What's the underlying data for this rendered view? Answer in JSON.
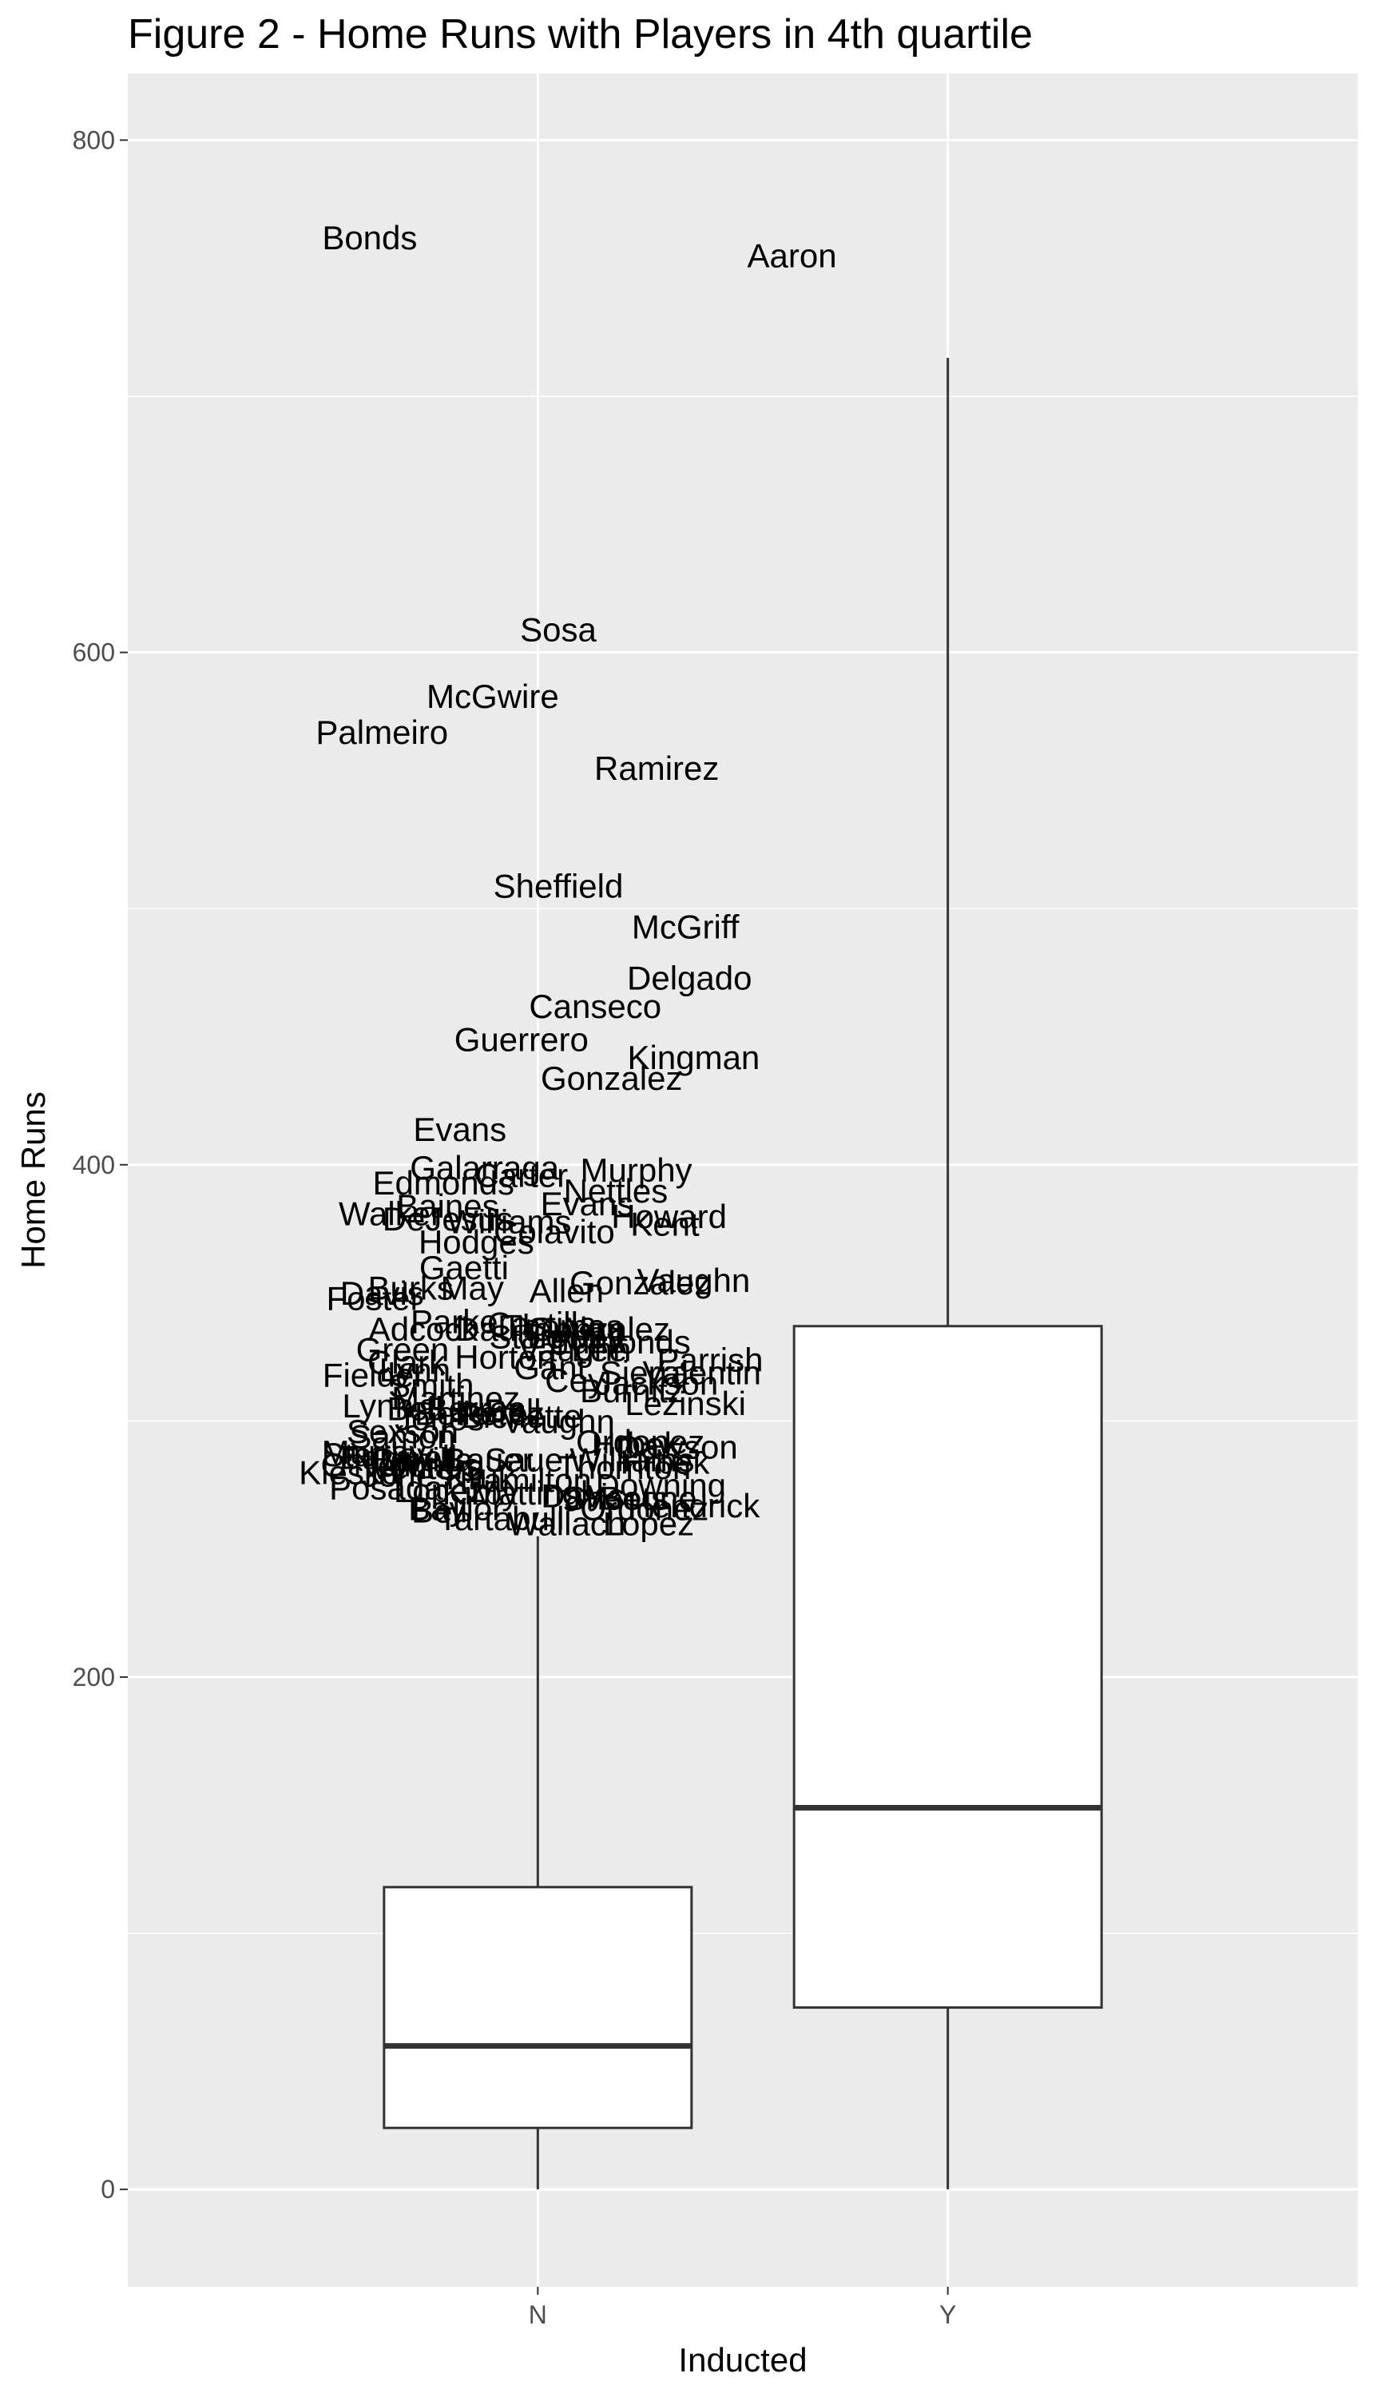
{
  "chart_data": {
    "type": "boxplot",
    "title": "Figure 2 - Home Runs with Players in 4th quartile",
    "xlabel": "Inducted",
    "ylabel": "Home Runs",
    "categories": [
      "N",
      "Y"
    ],
    "ylim": [
      -38,
      826
    ],
    "yticks": [
      0,
      200,
      400,
      600,
      800
    ],
    "grid": true,
    "legend": "none",
    "panel_color": "#ebebeb",
    "box_color": "#333333",
    "boxes": [
      {
        "category": "N",
        "min": 0,
        "q1": 24,
        "median": 56,
        "q3": 118,
        "max": 255
      },
      {
        "category": "Y",
        "min": 0,
        "q1": 71,
        "median": 149,
        "q3": 337,
        "max": 715
      }
    ],
    "labels": [
      {
        "text": "Bonds",
        "category": "N",
        "x": -0.41,
        "y": 762
      },
      {
        "text": "Aaron",
        "category": "Y",
        "x": -0.38,
        "y": 755
      },
      {
        "text": "Sosa",
        "category": "N",
        "x": 0.05,
        "y": 609
      },
      {
        "text": "McGwire",
        "category": "N",
        "x": -0.11,
        "y": 583
      },
      {
        "text": "Palmeiro",
        "category": "N",
        "x": -0.38,
        "y": 569
      },
      {
        "text": "Ramirez",
        "category": "N",
        "x": 0.29,
        "y": 555
      },
      {
        "text": "Sheffield",
        "category": "N",
        "x": 0.05,
        "y": 509
      },
      {
        "text": "McGriff",
        "category": "N",
        "x": 0.36,
        "y": 493
      },
      {
        "text": "Delgado",
        "category": "N",
        "x": 0.37,
        "y": 473
      },
      {
        "text": "Canseco",
        "category": "N",
        "x": 0.14,
        "y": 462
      },
      {
        "text": "Guerrero",
        "category": "N",
        "x": -0.04,
        "y": 449
      },
      {
        "text": "Kingman",
        "category": "N",
        "x": 0.38,
        "y": 442
      },
      {
        "text": "Gonzalez",
        "category": "N",
        "x": 0.18,
        "y": 434
      },
      {
        "text": "Evans",
        "category": "N",
        "x": -0.19,
        "y": 414
      },
      {
        "text": "Galarraga",
        "category": "N",
        "x": -0.13,
        "y": 399
      },
      {
        "text": "Murphy",
        "category": "N",
        "x": 0.24,
        "y": 398
      },
      {
        "text": "Carter",
        "category": "N",
        "x": -0.04,
        "y": 396
      },
      {
        "text": "Edmonds",
        "category": "N",
        "x": -0.23,
        "y": 393
      },
      {
        "text": "Nettles",
        "category": "N",
        "x": 0.19,
        "y": 390
      },
      {
        "text": "Evans",
        "category": "N",
        "x": 0.12,
        "y": 385
      },
      {
        "text": "Baines",
        "category": "N",
        "x": -0.22,
        "y": 384
      },
      {
        "text": "Walker",
        "category": "N",
        "x": -0.36,
        "y": 381
      },
      {
        "text": "Howard",
        "category": "N",
        "x": 0.32,
        "y": 380
      },
      {
        "text": "DeJesus",
        "category": "N",
        "x": -0.22,
        "y": 379
      },
      {
        "text": "Williams",
        "category": "N",
        "x": -0.07,
        "y": 378
      },
      {
        "text": "Kent",
        "category": "N",
        "x": 0.31,
        "y": 377
      },
      {
        "text": "Colavito",
        "category": "N",
        "x": 0.04,
        "y": 374
      },
      {
        "text": "Hodges",
        "category": "N",
        "x": -0.15,
        "y": 370
      },
      {
        "text": "Gaetti",
        "category": "N",
        "x": -0.18,
        "y": 360
      },
      {
        "text": "Gonzalez",
        "category": "N",
        "x": 0.25,
        "y": 354
      },
      {
        "text": "Vaughn",
        "category": "N",
        "x": 0.38,
        "y": 355
      },
      {
        "text": "Burks",
        "category": "N",
        "x": -0.31,
        "y": 352
      },
      {
        "text": "May",
        "category": "N",
        "x": -0.16,
        "y": 352
      },
      {
        "text": "Allen",
        "category": "N",
        "x": 0.07,
        "y": 351
      },
      {
        "text": "Davis",
        "category": "N",
        "x": -0.38,
        "y": 350
      },
      {
        "text": "Foster",
        "category": "N",
        "x": -0.4,
        "y": 348
      },
      {
        "text": "Parker",
        "category": "N",
        "x": -0.19,
        "y": 339
      },
      {
        "text": "Castilla",
        "category": "N",
        "x": 0.01,
        "y": 338
      },
      {
        "text": "Thomas",
        "category": "N",
        "x": 0.06,
        "y": 337
      },
      {
        "text": "Alou",
        "category": "N",
        "x": 0.13,
        "y": 336
      },
      {
        "text": "Gonzalez",
        "category": "N",
        "x": 0.15,
        "y": 336
      },
      {
        "text": "Adcock",
        "category": "N",
        "x": -0.28,
        "y": 336
      },
      {
        "text": "Daulton",
        "category": "N",
        "x": -0.06,
        "y": 336
      },
      {
        "text": "Stargell",
        "category": "N",
        "x": 0.02,
        "y": 333
      },
      {
        "text": "Lowell",
        "category": "N",
        "x": 0.09,
        "y": 333
      },
      {
        "text": "Edmonds",
        "category": "N",
        "x": 0.2,
        "y": 331
      },
      {
        "text": "Green",
        "category": "N",
        "x": -0.33,
        "y": 328
      },
      {
        "text": "Vaughn",
        "category": "N",
        "x": 0.09,
        "y": 328
      },
      {
        "text": "Lee",
        "category": "N",
        "x": 0.15,
        "y": 328
      },
      {
        "text": "Horton",
        "category": "N",
        "x": -0.08,
        "y": 325
      },
      {
        "text": "Parrish",
        "category": "N",
        "x": 0.42,
        "y": 324
      },
      {
        "text": "Clark",
        "category": "N",
        "x": -0.32,
        "y": 323
      },
      {
        "text": "Gant",
        "category": "N",
        "x": 0.03,
        "y": 321
      },
      {
        "text": "Lynn",
        "category": "N",
        "x": -0.3,
        "y": 320
      },
      {
        "text": "Sierra",
        "category": "N",
        "x": 0.26,
        "y": 319
      },
      {
        "text": "Valentin",
        "category": "N",
        "x": 0.4,
        "y": 319
      },
      {
        "text": "Fielder",
        "category": "N",
        "x": -0.4,
        "y": 318
      },
      {
        "text": "Cey",
        "category": "N",
        "x": 0.09,
        "y": 316
      },
      {
        "text": "Jackson",
        "category": "N",
        "x": 0.29,
        "y": 315
      },
      {
        "text": "Smith",
        "category": "N",
        "x": -0.26,
        "y": 314
      },
      {
        "text": "Burnitz",
        "category": "N",
        "x": 0.23,
        "y": 312
      },
      {
        "text": "Martinez",
        "category": "N",
        "x": -0.2,
        "y": 309
      },
      {
        "text": "Lezinski",
        "category": "N",
        "x": 0.36,
        "y": 307
      },
      {
        "text": "Lynn",
        "category": "N",
        "x": -0.39,
        "y": 306
      },
      {
        "text": "Bell",
        "category": "N",
        "x": -0.3,
        "y": 305
      },
      {
        "text": "Berroa",
        "category": "N",
        "x": -0.15,
        "y": 305
      },
      {
        "text": "Bell",
        "category": "N",
        "x": -0.06,
        "y": 304
      },
      {
        "text": "Belle",
        "category": "N",
        "x": -0.21,
        "y": 303
      },
      {
        "text": "Perez",
        "category": "N",
        "x": -0.09,
        "y": 303
      },
      {
        "text": "Bichette",
        "category": "N",
        "x": -0.04,
        "y": 302
      },
      {
        "text": "Jones",
        "category": "N",
        "x": -0.24,
        "y": 301
      },
      {
        "text": "Vaughn",
        "category": "N",
        "x": 0.05,
        "y": 300
      },
      {
        "text": "Sexson",
        "category": "N",
        "x": -0.33,
        "y": 296
      },
      {
        "text": "Samon",
        "category": "N",
        "x": -0.33,
        "y": 294
      },
      {
        "text": "Ordonez",
        "category": "N",
        "x": 0.25,
        "y": 292
      },
      {
        "text": "Hrbek",
        "category": "N",
        "x": 0.24,
        "y": 291
      },
      {
        "text": "Dawson",
        "category": "N",
        "x": 0.34,
        "y": 290
      },
      {
        "text": "Murray",
        "category": "N",
        "x": -0.4,
        "y": 288
      },
      {
        "text": "Stanley",
        "category": "N",
        "x": -0.39,
        "y": 287
      },
      {
        "text": "Bagwell",
        "category": "N",
        "x": -0.34,
        "y": 286
      },
      {
        "text": "Bonilla",
        "category": "N",
        "x": -0.28,
        "y": 285
      },
      {
        "text": "Bauer",
        "category": "N",
        "x": -0.12,
        "y": 285
      },
      {
        "text": "Sauer",
        "category": "N",
        "x": -0.02,
        "y": 285
      },
      {
        "text": "Williams",
        "category": "N",
        "x": 0.23,
        "y": 285
      },
      {
        "text": "Hrbek",
        "category": "N",
        "x": 0.31,
        "y": 284
      },
      {
        "text": "O'Neill",
        "category": "N",
        "x": -0.41,
        "y": 283
      },
      {
        "text": "Jones",
        "category": "N",
        "x": -0.25,
        "y": 283
      },
      {
        "text": "Ventura",
        "category": "N",
        "x": -0.27,
        "y": 282
      },
      {
        "text": "Thornton",
        "category": "N",
        "x": 0.21,
        "y": 282
      },
      {
        "text": "Klesko",
        "category": "N",
        "x": -0.46,
        "y": 280
      },
      {
        "text": "Jones",
        "category": "N",
        "x": -0.32,
        "y": 279
      },
      {
        "text": "Kruk",
        "category": "N",
        "x": -0.14,
        "y": 278
      },
      {
        "text": "Hamilton",
        "category": "N",
        "x": -0.03,
        "y": 277
      },
      {
        "text": "Downing",
        "category": "N",
        "x": 0.3,
        "y": 275
      },
      {
        "text": "Posada",
        "category": "N",
        "x": -0.37,
        "y": 274
      },
      {
        "text": "Lopez",
        "category": "N",
        "x": -0.24,
        "y": 273
      },
      {
        "text": "Kirby",
        "category": "N",
        "x": -0.14,
        "y": 272
      },
      {
        "text": "Mattingly",
        "category": "N",
        "x": 0.0,
        "y": 272
      },
      {
        "text": "Davis",
        "category": "N",
        "x": 0.11,
        "y": 271
      },
      {
        "text": "Sheets",
        "category": "N",
        "x": 0.19,
        "y": 270
      },
      {
        "text": "Boone",
        "category": "N",
        "x": 0.27,
        "y": 270
      },
      {
        "text": "Hendrick",
        "category": "N",
        "x": 0.38,
        "y": 267
      },
      {
        "text": "Baylor",
        "category": "N",
        "x": -0.2,
        "y": 266
      },
      {
        "text": "Ordonez",
        "category": "N",
        "x": 0.26,
        "y": 266
      },
      {
        "text": "Wallach",
        "category": "N",
        "x": 0.07,
        "y": 260
      },
      {
        "text": "Tartabull",
        "category": "N",
        "x": -0.09,
        "y": 262
      },
      {
        "text": "Lopez",
        "category": "N",
        "x": 0.27,
        "y": 260
      },
      {
        "text": "Bell",
        "category": "N",
        "x": -0.24,
        "y": 265
      }
    ]
  }
}
